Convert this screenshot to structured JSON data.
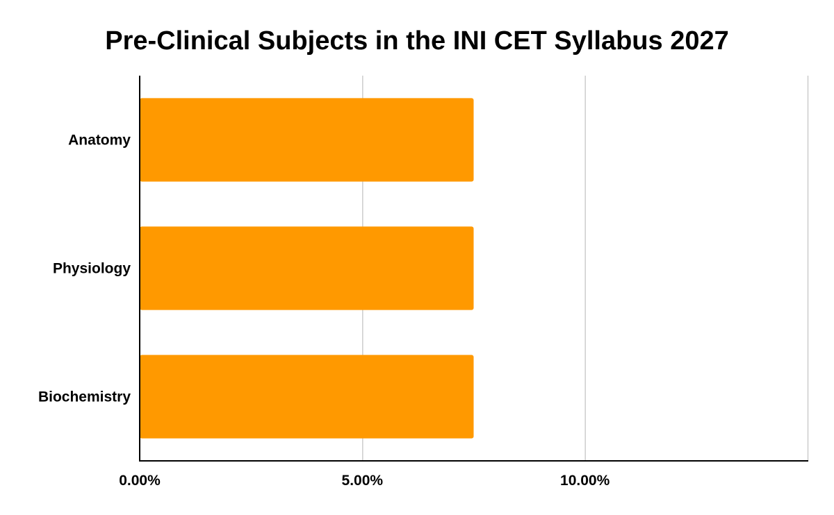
{
  "chart_data": {
    "type": "bar",
    "orientation": "horizontal",
    "title": "Pre-Clinical Subjects in the INI CET Syllabus 2027",
    "xlabel": "",
    "ylabel": "",
    "categories": [
      "Anatomy",
      "Physiology",
      "Biochemistry"
    ],
    "values": [
      7.5,
      7.5,
      7.5
    ],
    "xlim": [
      0,
      15
    ],
    "xticks": [
      0,
      5,
      10,
      15
    ],
    "xtick_labels": [
      "0.00%",
      "5.00%",
      "10.00%",
      ""
    ],
    "grid": true,
    "legend": "none",
    "bar_color": "#FF9900",
    "grid_color": "#CCCCCC",
    "axis_color": "#000000"
  }
}
